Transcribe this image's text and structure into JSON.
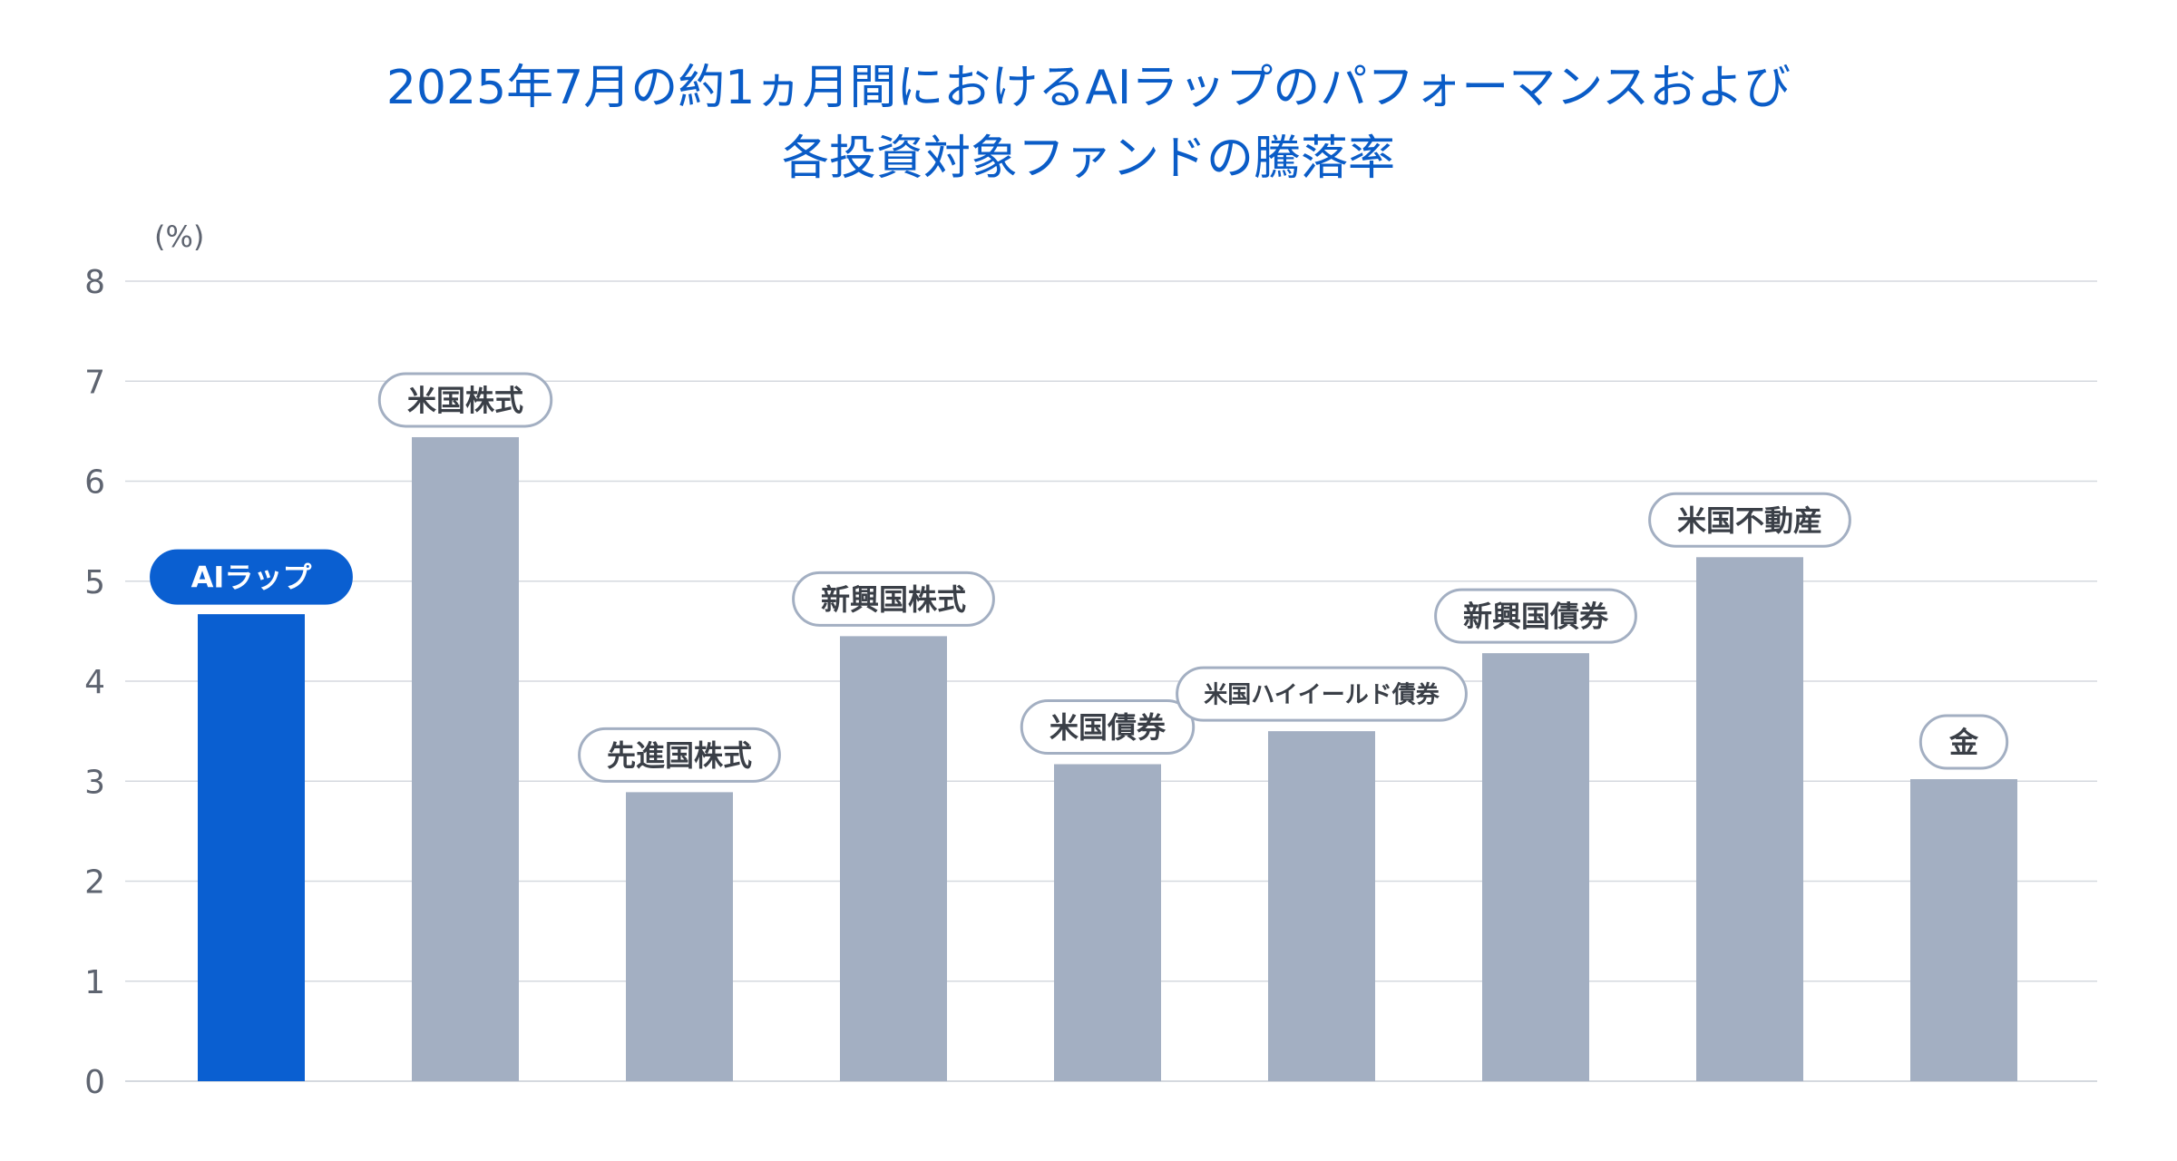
{
  "title_lines": [
    "2025年7月の約1ヵ月間におけるAIラップのパフォーマンスおよび",
    "各投資対象ファンドの騰落率"
  ],
  "colors": {
    "title": "#0a5cc7",
    "highlight_bar": "#0a5fd1",
    "bar": "#a3afc2",
    "grid": "#d5d9df",
    "axis_text": "#5e6470",
    "pill_border": "#a3afc2",
    "pill_text": "#3a3f47"
  },
  "chart_data": {
    "type": "bar",
    "unit_label": "(%)",
    "ylim": [
      0,
      8
    ],
    "yticks": [
      "0",
      "1",
      "2",
      "3",
      "4",
      "5",
      "6",
      "7",
      "8"
    ],
    "grid": true,
    "categories": [
      "AIラップ",
      "米国株式",
      "先進国株式",
      "新興国株式",
      "米国債券",
      "米国ハイイールド債券",
      "新興国債券",
      "米国不動産",
      "金"
    ],
    "values": [
      4.67,
      6.44,
      2.89,
      4.45,
      3.17,
      3.5,
      4.28,
      5.24,
      3.02
    ],
    "highlight_index": 0
  }
}
